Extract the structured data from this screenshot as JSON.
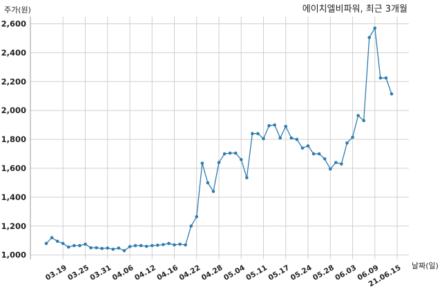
{
  "chart_data": {
    "type": "line",
    "title": "에이치엘비파워, 최근 3개월",
    "ylabel": "주가(원)",
    "xlabel": "날짜(일)",
    "ylim": [
      970,
      2650
    ],
    "yticks": [
      1000,
      1200,
      1400,
      1600,
      1800,
      2000,
      2200,
      2400,
      2600
    ],
    "ytick_labels": [
      "1,000",
      "1,200",
      "1,400",
      "1,600",
      "1,800",
      "2,000",
      "2,200",
      "2,400",
      "2,600"
    ],
    "grid": true,
    "line_color": "#2e7bb0",
    "xtick_labels": [
      {
        "label": "03.19",
        "index": 3
      },
      {
        "label": "03.25",
        "index": 7
      },
      {
        "label": "03.31",
        "index": 11
      },
      {
        "label": "04.06",
        "index": 15
      },
      {
        "label": "04.12",
        "index": 19
      },
      {
        "label": "04.16",
        "index": 23
      },
      {
        "label": "04.22",
        "index": 27
      },
      {
        "label": "04.28",
        "index": 31
      },
      {
        "label": "05.04",
        "index": 35
      },
      {
        "label": "05.11",
        "index": 39
      },
      {
        "label": "05.17",
        "index": 43
      },
      {
        "label": "05.24",
        "index": 47
      },
      {
        "label": "05.28",
        "index": 51
      },
      {
        "label": "06.03",
        "index": 55
      },
      {
        "label": "06.09",
        "index": 59
      },
      {
        "label": "21.06.15",
        "index": 63
      }
    ],
    "values": [
      1080,
      1120,
      1095,
      1080,
      1055,
      1065,
      1065,
      1075,
      1050,
      1050,
      1045,
      1048,
      1040,
      1048,
      1030,
      1058,
      1065,
      1065,
      1060,
      1065,
      1068,
      1072,
      1080,
      1070,
      1075,
      1070,
      1200,
      1265,
      1635,
      1500,
      1440,
      1640,
      1700,
      1705,
      1705,
      1660,
      1535,
      1840,
      1840,
      1805,
      1895,
      1900,
      1810,
      1890,
      1810,
      1800,
      1740,
      1755,
      1700,
      1700,
      1665,
      1595,
      1640,
      1630,
      1775,
      1815,
      1965,
      1930,
      2505,
      2570,
      2225,
      2225,
      2115
    ]
  }
}
